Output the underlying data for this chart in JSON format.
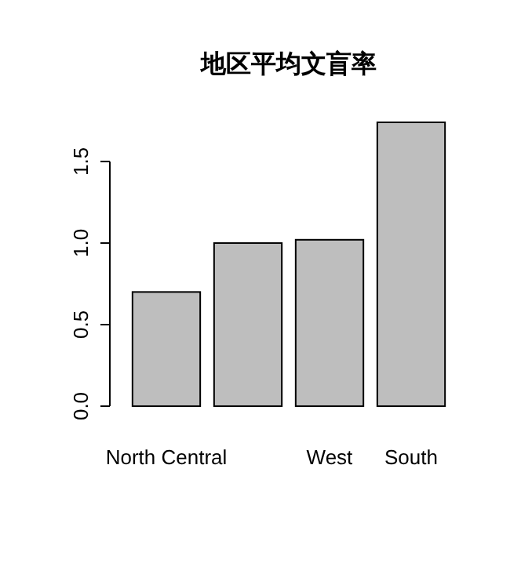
{
  "chart_data": {
    "type": "bar",
    "title": "地区平均文盲率",
    "categories": [
      "North Central",
      null,
      "West",
      "South"
    ],
    "values": [
      0.7,
      1.0,
      1.02,
      1.74
    ],
    "color": "#bebebe",
    "ylim": [
      0,
      1.74
    ],
    "yticks": [
      {
        "value": 0,
        "label": "0.0"
      },
      {
        "value": 0.5,
        "label": "0.5"
      },
      {
        "value": 1,
        "label": "1.0"
      },
      {
        "value": 1.5,
        "label": "1.5"
      }
    ],
    "grid": false
  }
}
